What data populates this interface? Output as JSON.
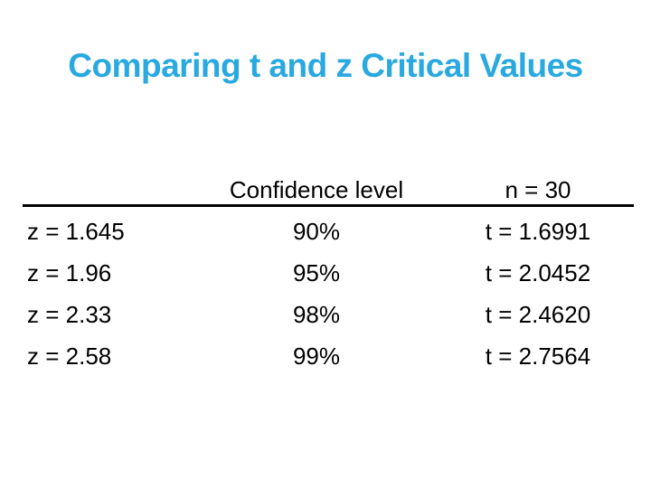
{
  "slide": {
    "title": "Comparing t and z Critical Values",
    "title_color": "#29a9df",
    "background_color": "#ffffff"
  },
  "table": {
    "divider_color": "#000000",
    "header": {
      "z_label": "",
      "confidence_label": "Confidence level",
      "t_label": "n = 30"
    },
    "rows": [
      {
        "z": "z = 1.645",
        "confidence": "90%",
        "t": "t = 1.6991"
      },
      {
        "z": "z = 1.96",
        "confidence": "95%",
        "t": "t = 2.0452"
      },
      {
        "z": "z = 2.33",
        "confidence": "98%",
        "t": "t = 2.4620"
      },
      {
        "z": "z = 2.58",
        "confidence": "99%",
        "t": "t = 2.7564"
      }
    ]
  }
}
